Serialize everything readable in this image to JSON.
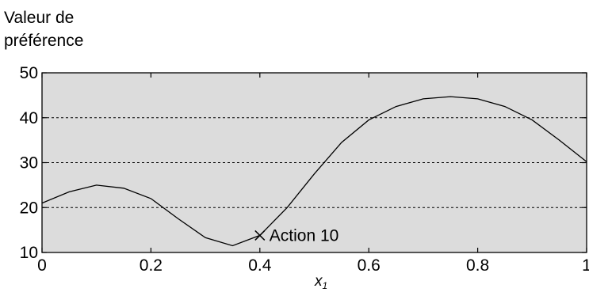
{
  "chart_data": {
    "type": "line",
    "ylabel_lines": [
      "Valeur de",
      "préférence"
    ],
    "xlabel": "x",
    "xlabel_subscript": "1",
    "xlim": [
      0,
      1
    ],
    "ylim": [
      10,
      50
    ],
    "xticks": [
      0,
      0.2,
      0.4,
      0.6,
      0.8,
      1
    ],
    "xtick_labels": [
      "0",
      "0.2",
      "0.4",
      "0.6",
      "0.8",
      "1"
    ],
    "yticks": [
      10,
      20,
      30,
      40,
      50
    ],
    "ytick_labels": [
      "10",
      "20",
      "30",
      "40",
      "50"
    ],
    "grid": "horizontal dashed",
    "plot_background": "#dcdcdc",
    "line_color": "#000000",
    "series": [
      {
        "x": [
          0,
          0.05,
          0.1,
          0.15,
          0.2,
          0.25,
          0.3,
          0.35,
          0.4,
          0.45,
          0.5,
          0.55,
          0.6,
          0.65,
          0.7,
          0.75,
          0.8,
          0.85,
          0.9,
          0.95,
          1.0
        ],
        "y": [
          21,
          23.5,
          25,
          24.3,
          22,
          17.5,
          13.3,
          11.5,
          13.8,
          20,
          27.5,
          34.5,
          39.5,
          42.5,
          44.2,
          44.7,
          44.2,
          42.5,
          39.5,
          35,
          30.2
        ]
      }
    ],
    "annotation": {
      "x": 0.4,
      "y": 13.8,
      "marker": "x",
      "label": "Action 10"
    }
  }
}
